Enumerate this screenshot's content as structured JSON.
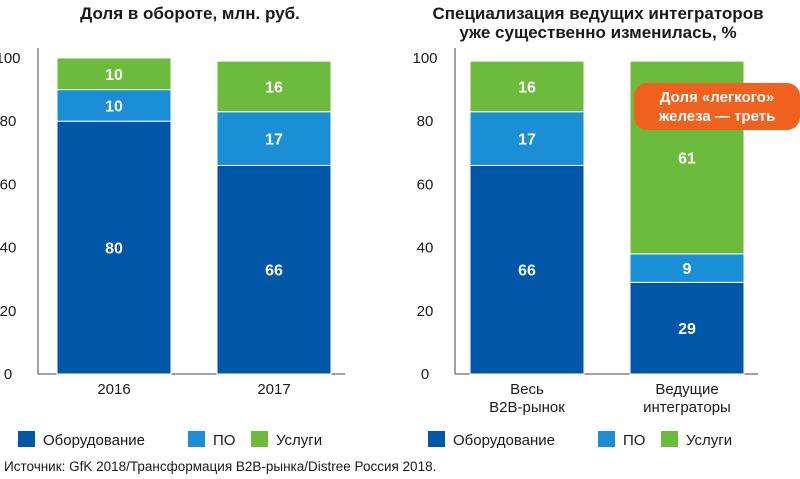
{
  "colors": {
    "hardware": "#0057a8",
    "software": "#1a8fd6",
    "services": "#6dbb3c",
    "callout": "#f0601e"
  },
  "source": "Источник: GfK 2018/Трансформация B2B-рынка/Distree Россия 2018.",
  "chart_data": [
    {
      "type": "bar",
      "stacked": true,
      "title": "Доля в обороте, млн. руб.",
      "ylim": [
        0,
        100
      ],
      "yticks": [
        "0",
        "20",
        "40",
        "60",
        "80",
        "100"
      ],
      "categories": [
        "2016",
        "2017"
      ],
      "series": [
        {
          "name": "Оборудование",
          "values": [
            80,
            66
          ]
        },
        {
          "name": "ПО",
          "values": [
            10,
            17
          ]
        },
        {
          "name": "Услуги",
          "values": [
            10,
            16
          ]
        }
      ],
      "legend": [
        "Оборудование",
        "ПО",
        "Услуги"
      ]
    },
    {
      "type": "bar",
      "stacked": true,
      "title_lines": [
        "Специализация ведущих интеграторов",
        "уже существенно изменилась, %"
      ],
      "ylim": [
        0,
        100
      ],
      "yticks": [
        "0",
        "20",
        "40",
        "60",
        "80",
        "100"
      ],
      "categories": [
        [
          "Весь",
          "B2B-рынок"
        ],
        [
          "Ведущие",
          "интеграторы"
        ]
      ],
      "series": [
        {
          "name": "Оборудование",
          "values": [
            66,
            29
          ]
        },
        {
          "name": "ПО",
          "values": [
            17,
            9
          ]
        },
        {
          "name": "Услуги",
          "values": [
            16,
            61
          ]
        }
      ],
      "legend": [
        "Оборудование",
        "ПО",
        "Услуги"
      ],
      "callout": [
        "Доля «легкого»",
        "железа — треть"
      ]
    }
  ]
}
